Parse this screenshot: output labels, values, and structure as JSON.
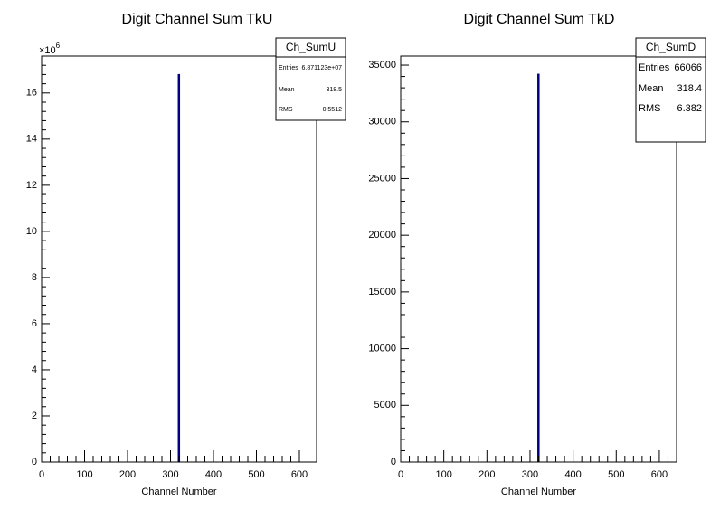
{
  "chart_data": [
    {
      "type": "histogram",
      "title": "Digit Channel Sum TkU",
      "x_label": "Channel Number",
      "bins": [
        318,
        319
      ],
      "values": [
        16.8
      ],
      "color": "#000080",
      "xlim": [
        0,
        640
      ],
      "xticks": [
        0,
        100,
        200,
        300,
        400,
        500,
        600
      ],
      "ylim": [
        0,
        17.6
      ],
      "yticks": [
        0,
        2,
        4,
        6,
        8,
        10,
        12,
        14,
        16
      ],
      "y_exponent": {
        "base": "×10",
        "power": "6"
      },
      "stats": {
        "name": "Ch_SumU",
        "rows": [
          {
            "label": "Entries",
            "value": "6.871123e+07"
          },
          {
            "label": "Mean",
            "value": 318.5
          },
          {
            "label": "RMS",
            "value": 0.5512
          }
        ]
      }
    },
    {
      "type": "histogram",
      "title": "Digit Channel Sum TkD",
      "x_label": "Channel Number",
      "bins": [
        318,
        319
      ],
      "values": [
        34200
      ],
      "color": "#000080",
      "xlim": [
        0,
        640
      ],
      "xticks": [
        0,
        100,
        200,
        300,
        400,
        500,
        600
      ],
      "ylim": [
        0,
        35800
      ],
      "yticks": [
        0,
        5000,
        10000,
        15000,
        20000,
        25000,
        30000,
        35000
      ],
      "stats": {
        "name": "Ch_SumD",
        "rows": [
          {
            "label": "Entries",
            "value": 66066
          },
          {
            "label": "Mean",
            "value": 318.4
          },
          {
            "label": "RMS",
            "value": 6.382
          }
        ]
      }
    }
  ]
}
